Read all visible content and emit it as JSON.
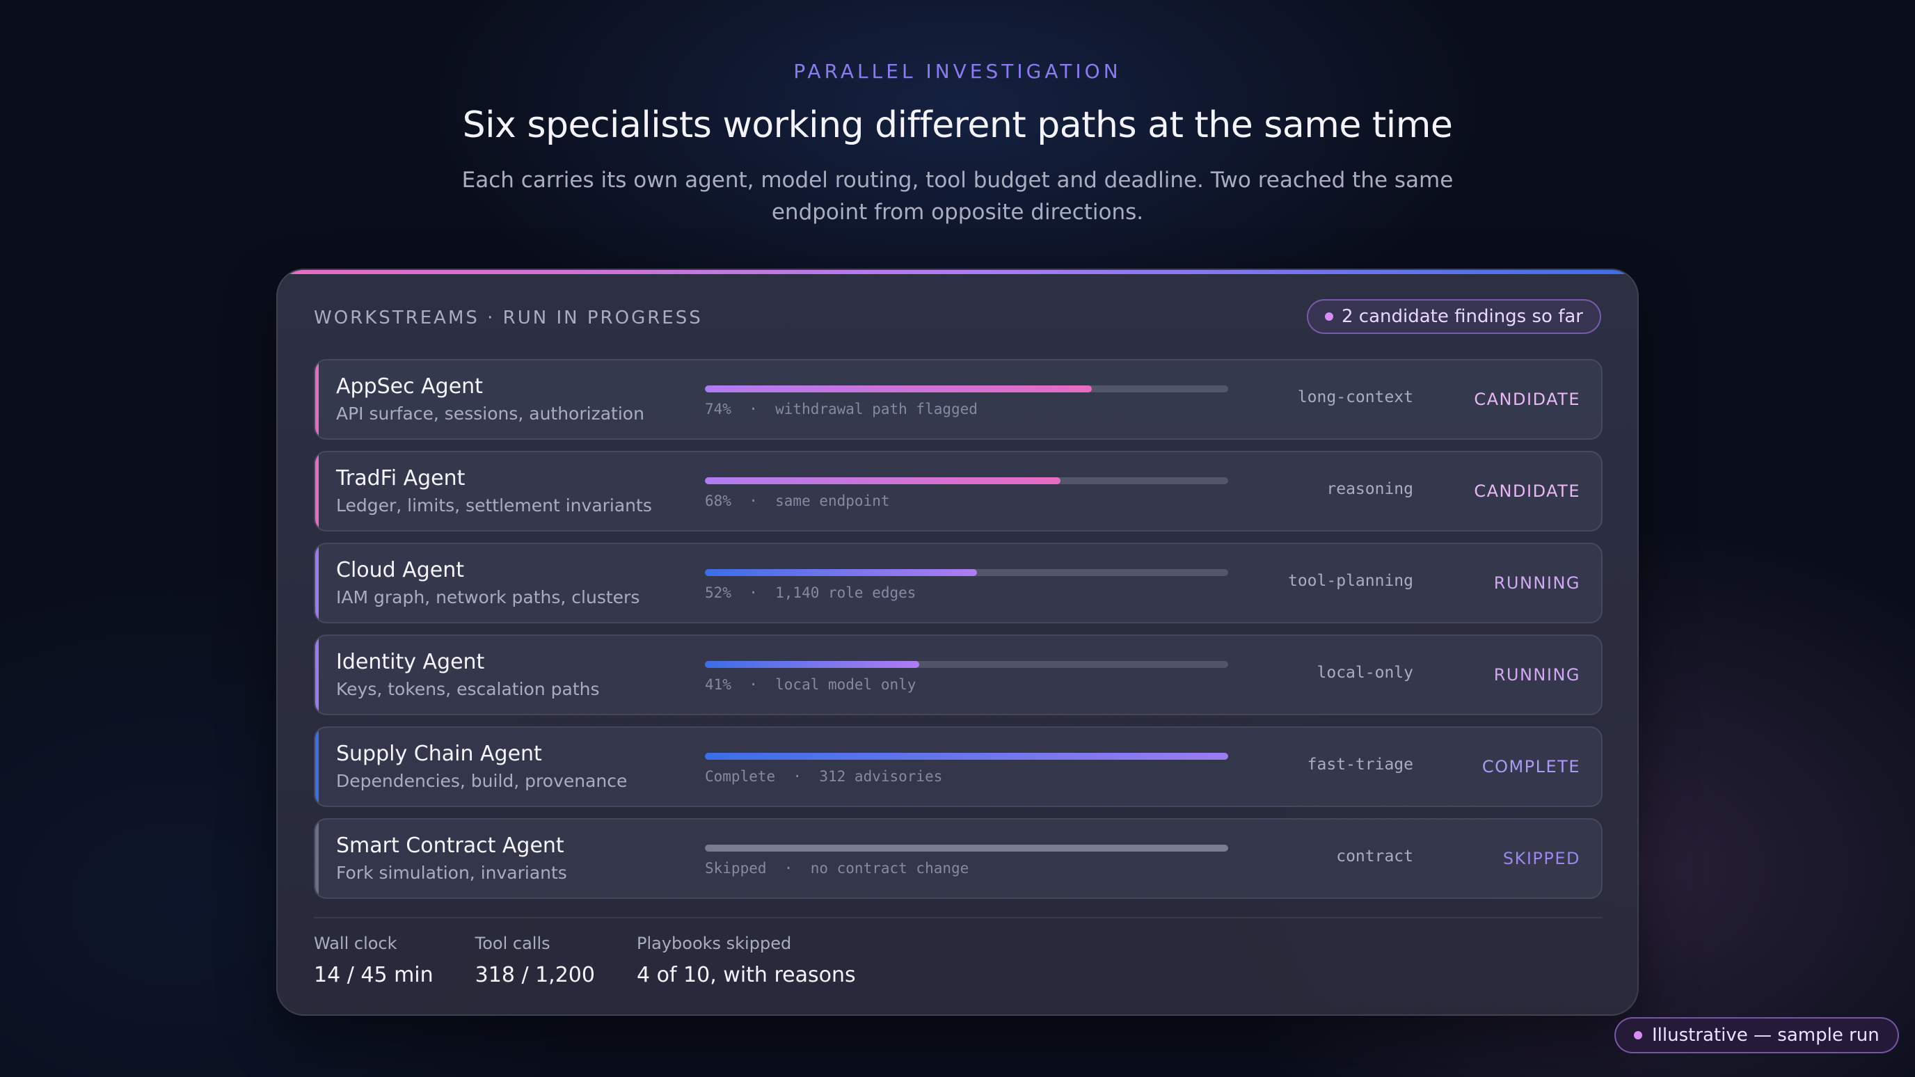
{
  "hero": {
    "eyebrow": "PARALLEL INVESTIGATION",
    "title": "Six specialists working different paths at the same time",
    "subtitle": "Each carries its own agent, model routing, tool budget and deadline. Two reached the same endpoint from opposite directions."
  },
  "panel": {
    "header_label": "WORKSTREAMS · RUN IN PROGRESS",
    "findings_pill": "2 candidate findings so far",
    "rows": [
      {
        "name": "AppSec Agent",
        "desc": "API surface, sessions, authorization",
        "progress": 0.74,
        "caption": "74%  ·  withdrawal path flagged",
        "routing": "long-context",
        "status": "CANDIDATE",
        "accent": "#e86bc2",
        "fill_from": "#b07cf2",
        "fill_to": "#e86bc2",
        "status_color": "#e7b8f4"
      },
      {
        "name": "TradFi Agent",
        "desc": "Ledger, limits, settlement invariants",
        "progress": 0.68,
        "caption": "68%  ·  same endpoint",
        "routing": "reasoning",
        "status": "CANDIDATE",
        "accent": "#e86bc2",
        "fill_from": "#b07cf2",
        "fill_to": "#e86bc2",
        "status_color": "#e7b8f4"
      },
      {
        "name": "Cloud Agent",
        "desc": "IAM graph, network paths, clusters",
        "progress": 0.52,
        "caption": "52%  ·  1,140 role edges",
        "routing": "tool-planning",
        "status": "RUNNING",
        "accent": "#9b7cf0",
        "fill_from": "#3b6ee8",
        "fill_to": "#b07cf2",
        "status_color": "#d2a8f2"
      },
      {
        "name": "Identity Agent",
        "desc": "Keys, tokens, escalation paths",
        "progress": 0.41,
        "caption": "41%  ·  local model only",
        "routing": "local-only",
        "status": "RUNNING",
        "accent": "#9b7cf0",
        "fill_from": "#3b6ee8",
        "fill_to": "#b07cf2",
        "status_color": "#d2a8f2"
      },
      {
        "name": "Supply Chain Agent",
        "desc": "Dependencies, build, provenance",
        "progress": 1.0,
        "caption": "Complete  ·  312 advisories",
        "routing": "fast-triage",
        "status": "COMPLETE",
        "accent": "#3b6ee8",
        "fill_from": "#3b6ee8",
        "fill_to": "#9b7cf0",
        "status_color": "#a99af4"
      },
      {
        "name": "Smart Contract Agent",
        "desc": "Fork simulation, invariants",
        "progress": 1.0,
        "caption": "Skipped  ·  no contract change",
        "routing": "contract",
        "status": "SKIPPED",
        "accent": "#6b6e84",
        "fill_from": "#7a7d92",
        "fill_to": "#7a7d92",
        "status_color": "#9b86f0"
      }
    ],
    "stats": [
      {
        "label": "Wall clock",
        "value": "14 / 45 min"
      },
      {
        "label": "Tool calls",
        "value": "318 / 1,200"
      },
      {
        "label": "Playbooks skipped",
        "value": "4 of 10, with reasons"
      }
    ]
  },
  "footer": {
    "sample_pill": "Illustrative — sample run"
  }
}
